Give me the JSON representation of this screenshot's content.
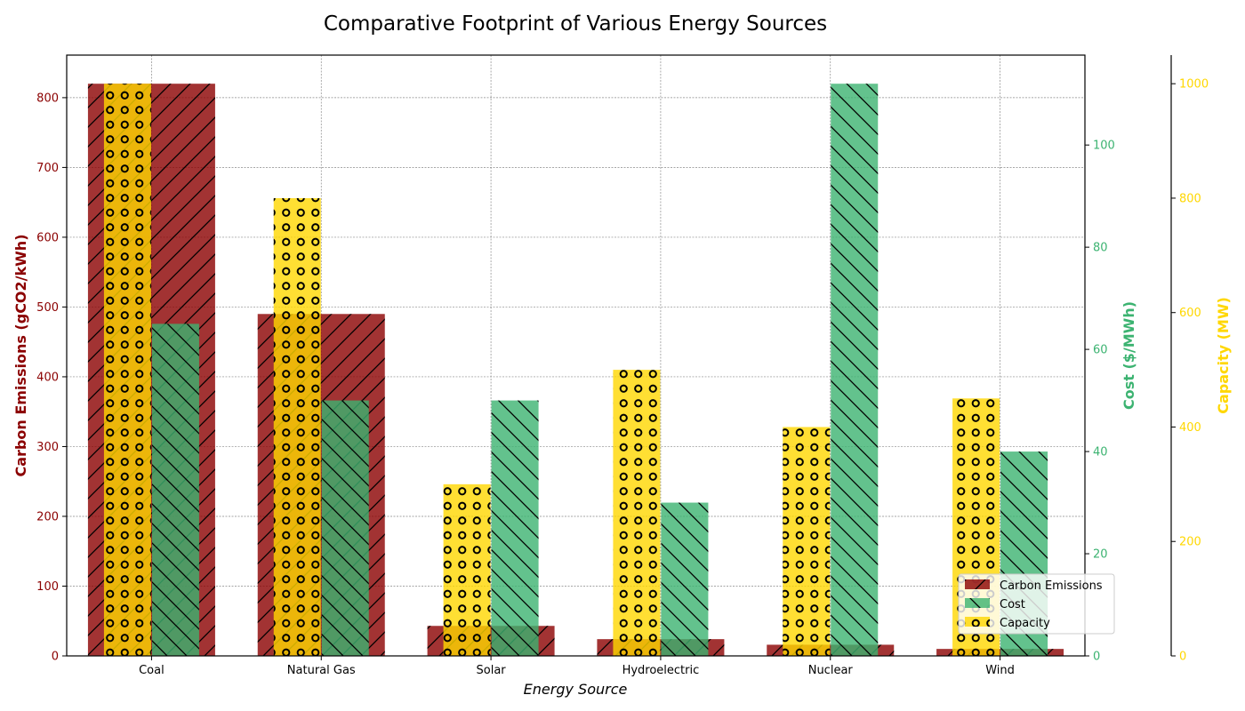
{
  "chart_data": {
    "type": "bar",
    "title": "Comparative Footprint of Various Energy Sources",
    "xlabel": "Energy Source",
    "categories": [
      "Coal",
      "Natural Gas",
      "Solar",
      "Hydroelectric",
      "Nuclear",
      "Wind"
    ],
    "series": [
      {
        "name": "Carbon Emissions",
        "axis": "left",
        "color": "#8b0000",
        "values": [
          820,
          490,
          43,
          24,
          16,
          10
        ]
      },
      {
        "name": "Cost",
        "axis": "right1",
        "color": "#3cb371",
        "values": [
          65,
          50,
          50,
          30,
          112,
          40
        ]
      },
      {
        "name": "Capacity",
        "axis": "right2",
        "color": "#ffd700",
        "values": [
          1000,
          800,
          300,
          500,
          400,
          450
        ]
      }
    ],
    "axes": {
      "left": {
        "label": "Carbon Emissions (gCO2/kWh)",
        "color": "#8b0000",
        "range": [
          0,
          861
        ],
        "ticks": [
          0,
          100,
          200,
          300,
          400,
          500,
          600,
          700,
          800
        ]
      },
      "right1": {
        "label": "Cost ($/MWh)",
        "color": "#3cb371",
        "range": [
          0,
          117.6
        ],
        "ticks": [
          0,
          20,
          40,
          60,
          80,
          100
        ]
      },
      "right2": {
        "label": "Capacity (MW)",
        "color": "#ffd700",
        "range": [
          0,
          1050
        ],
        "ticks": [
          0,
          200,
          400,
          600,
          800,
          1000
        ]
      }
    },
    "legend_position": "lower-right",
    "grid": true
  }
}
